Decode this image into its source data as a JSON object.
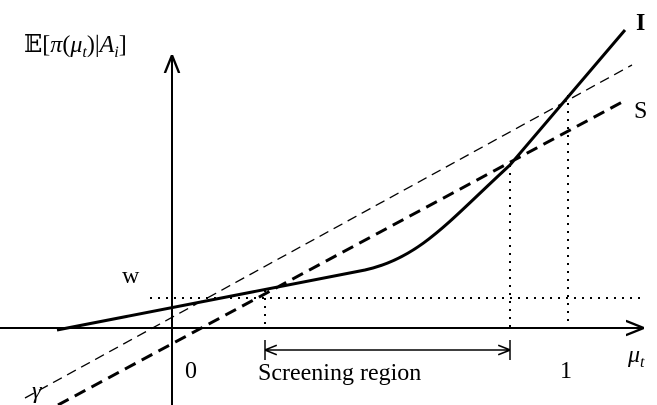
{
  "y_axis": {
    "label": [
      "𝔼[",
      "π",
      "(",
      "μ",
      "t",
      ")|",
      "A",
      "i",
      "]"
    ]
  },
  "x_axis": {
    "label": [
      "μ",
      "t"
    ],
    "tick_0": "0",
    "tick_1": "1"
  },
  "curves": {
    "informative": "I",
    "screening": "S",
    "gamma": "γ"
  },
  "level_label": "w",
  "region_label": "Screening region"
}
